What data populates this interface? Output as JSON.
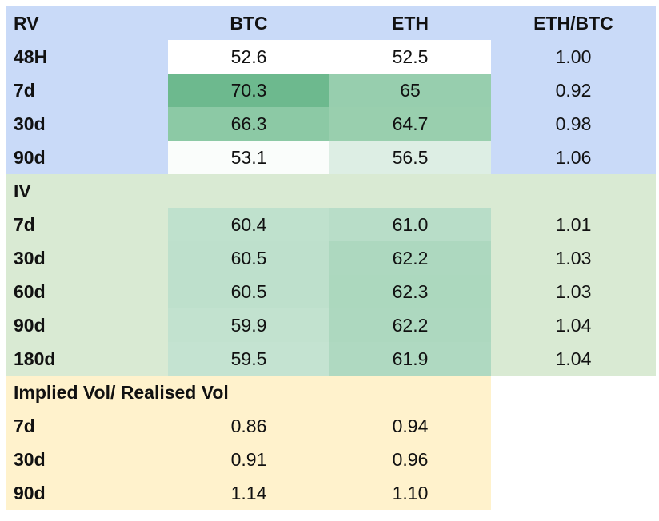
{
  "rv": {
    "label": "RV",
    "columns": [
      "BTC",
      "ETH",
      "ETH/BTC"
    ],
    "rows": [
      {
        "label": "48H",
        "btc": "52.6",
        "eth": "52.5",
        "ratio": "1.00"
      },
      {
        "label": "7d",
        "btc": "70.3",
        "eth": "65",
        "ratio": "0.92"
      },
      {
        "label": "30d",
        "btc": "66.3",
        "eth": "64.7",
        "ratio": "0.98"
      },
      {
        "label": "90d",
        "btc": "53.1",
        "eth": "56.5",
        "ratio": "1.06"
      }
    ]
  },
  "iv": {
    "label": "IV",
    "rows": [
      {
        "label": "7d",
        "btc": "60.4",
        "eth": "61.0",
        "ratio": "1.01"
      },
      {
        "label": "30d",
        "btc": "60.5",
        "eth": "62.2",
        "ratio": "1.03"
      },
      {
        "label": "60d",
        "btc": "60.5",
        "eth": "62.3",
        "ratio": "1.03"
      },
      {
        "label": "90d",
        "btc": "59.9",
        "eth": "62.2",
        "ratio": "1.04"
      },
      {
        "label": "180d",
        "btc": "59.5",
        "eth": "61.9",
        "ratio": "1.04"
      }
    ]
  },
  "ivrv": {
    "label": "Implied Vol/ Realised Vol",
    "rows": [
      {
        "label": "7d",
        "btc": "0.86",
        "eth": "0.94"
      },
      {
        "label": "30d",
        "btc": "0.91",
        "eth": "0.96"
      },
      {
        "label": "90d",
        "btc": "1.14",
        "eth": "1.10"
      }
    ]
  },
  "colors": {
    "rv_section": "#c9daf8",
    "iv_section": "#d9ead3",
    "ivrv_section": "#fff2cc",
    "heat_low": "#ffffff",
    "heat_high": "#6cb88e"
  }
}
